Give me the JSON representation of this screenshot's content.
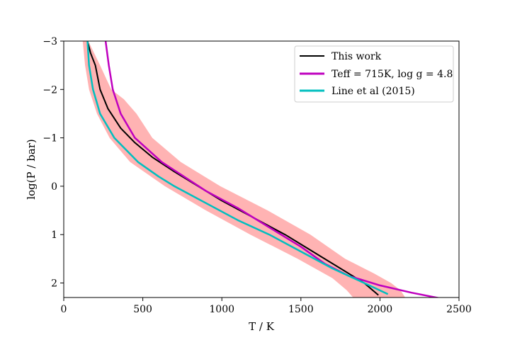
{
  "chart_data": {
    "type": "line",
    "title": "",
    "xlabel": "T / K",
    "ylabel": "log(P / bar)",
    "xlim": [
      0,
      2500
    ],
    "ylim": [
      2.3,
      -3
    ],
    "y_inverted": true,
    "x_ticks": [
      0,
      500,
      1000,
      1500,
      2000,
      2500
    ],
    "x_tick_labels": [
      "0",
      "500",
      "1000",
      "1500",
      "2000",
      "2500"
    ],
    "y_ticks": [
      -3,
      -2,
      -1,
      0,
      1,
      2
    ],
    "y_tick_labels": [
      "−3",
      "−2",
      "−1",
      "0",
      "1",
      "2"
    ],
    "grid": false,
    "legend_position": "top-right",
    "band": {
      "color": "#ffb3b3",
      "points_left": [
        [
          120,
          -3
        ],
        [
          135,
          -2.5
        ],
        [
          160,
          -2.0
        ],
        [
          210,
          -1.5
        ],
        [
          290,
          -1.0
        ],
        [
          420,
          -0.5
        ],
        [
          640,
          0.0
        ],
        [
          900,
          0.5
        ],
        [
          1180,
          1.0
        ],
        [
          1480,
          1.5
        ],
        [
          1700,
          1.9
        ],
        [
          1790,
          2.15
        ],
        [
          1830,
          2.3
        ]
      ],
      "points_right": [
        [
          155,
          -3
        ],
        [
          230,
          -2.5
        ],
        [
          300,
          -2.0
        ],
        [
          380,
          -1.8
        ],
        [
          460,
          -1.5
        ],
        [
          560,
          -1.0
        ],
        [
          740,
          -0.5
        ],
        [
          990,
          0.0
        ],
        [
          1290,
          0.5
        ],
        [
          1560,
          1.0
        ],
        [
          1780,
          1.5
        ],
        [
          1960,
          1.8
        ],
        [
          2070,
          2.0
        ],
        [
          2130,
          2.15
        ],
        [
          2160,
          2.3
        ]
      ]
    },
    "series": [
      {
        "name": "This work",
        "color": "#000000",
        "points": [
          [
            150,
            -3
          ],
          [
            170,
            -2.75
          ],
          [
            200,
            -2.5
          ],
          [
            230,
            -2.0
          ],
          [
            280,
            -1.6
          ],
          [
            360,
            -1.2
          ],
          [
            450,
            -0.9
          ],
          [
            560,
            -0.6
          ],
          [
            700,
            -0.3
          ],
          [
            800,
            -0.1
          ],
          [
            1000,
            0.3
          ],
          [
            1200,
            0.65
          ],
          [
            1400,
            1.0
          ],
          [
            1600,
            1.4
          ],
          [
            1800,
            1.8
          ],
          [
            1900,
            2.0
          ],
          [
            1990,
            2.25
          ]
        ]
      },
      {
        "name": "Teff = 715K, log g = 4.8",
        "color": "#bf00bf",
        "points": [
          [
            265,
            -3
          ],
          [
            285,
            -2.5
          ],
          [
            310,
            -2.0
          ],
          [
            360,
            -1.5
          ],
          [
            450,
            -1.0
          ],
          [
            620,
            -0.5
          ],
          [
            760,
            -0.2
          ],
          [
            900,
            0.1
          ],
          [
            1100,
            0.45
          ],
          [
            1300,
            0.85
          ],
          [
            1500,
            1.25
          ],
          [
            1650,
            1.6
          ],
          [
            1800,
            1.85
          ],
          [
            2000,
            2.05
          ],
          [
            2200,
            2.2
          ],
          [
            2400,
            2.33
          ]
        ]
      },
      {
        "name": "Line et al (2015)",
        "color": "#00bfbf",
        "points": [
          [
            150,
            -3
          ],
          [
            160,
            -2.5
          ],
          [
            185,
            -2.0
          ],
          [
            230,
            -1.5
          ],
          [
            320,
            -1.0
          ],
          [
            470,
            -0.5
          ],
          [
            600,
            -0.2
          ],
          [
            700,
            0.0
          ],
          [
            900,
            0.35
          ],
          [
            1100,
            0.7
          ],
          [
            1300,
            1.0
          ],
          [
            1500,
            1.35
          ],
          [
            1700,
            1.7
          ],
          [
            1900,
            2.0
          ],
          [
            2050,
            2.23
          ]
        ]
      }
    ]
  }
}
